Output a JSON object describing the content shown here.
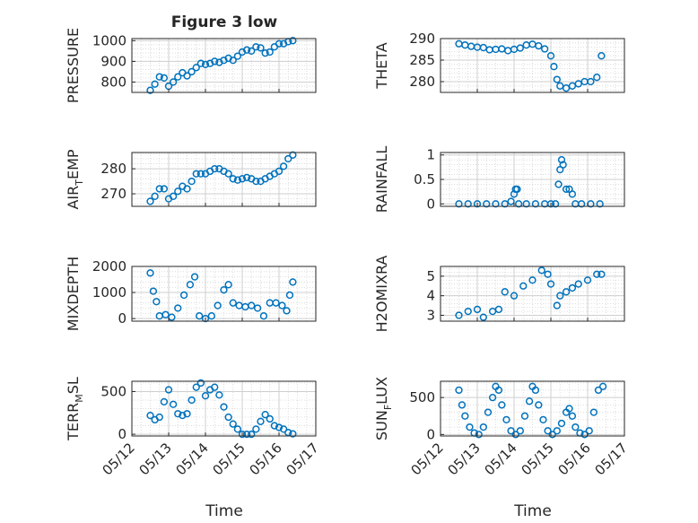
{
  "figure": {
    "title": "Figure 3 low",
    "marker_color": "#0072bd",
    "xlabel": "Time",
    "date_ticks": [
      "05/12",
      "05/13",
      "05/14",
      "05/15",
      "05/16",
      "05/17"
    ]
  },
  "chart_data": [
    {
      "type": "scatter",
      "title": "Figure 3 low",
      "ylabel_main": "PRESSURE",
      "ylabel_sub": "",
      "ylabel_tail": "",
      "xlim": [
        "2008-05-12",
        "2008-05-17"
      ],
      "ylim": [
        750,
        1010
      ],
      "yticks": [
        800,
        900,
        1000
      ],
      "grid": true,
      "x": [
        "2008-05-12 12:00",
        "2008-05-12 15:00",
        "2008-05-12 18:00",
        "2008-05-12 21:00",
        "2008-05-13 00:00",
        "2008-05-13 03:00",
        "2008-05-13 06:00",
        "2008-05-13 09:00",
        "2008-05-13 12:00",
        "2008-05-13 15:00",
        "2008-05-13 18:00",
        "2008-05-13 21:00",
        "2008-05-14 00:00",
        "2008-05-14 03:00",
        "2008-05-14 06:00",
        "2008-05-14 09:00",
        "2008-05-14 12:00",
        "2008-05-14 15:00",
        "2008-05-14 18:00",
        "2008-05-14 21:00",
        "2008-05-15 00:00",
        "2008-05-15 03:00",
        "2008-05-15 06:00",
        "2008-05-15 09:00",
        "2008-05-15 12:00",
        "2008-05-15 15:00",
        "2008-05-15 18:00",
        "2008-05-15 21:00",
        "2008-05-16 00:00",
        "2008-05-16 03:00",
        "2008-05-16 06:00",
        "2008-05-16 09:00"
      ],
      "y": [
        760,
        790,
        825,
        820,
        780,
        800,
        825,
        845,
        830,
        850,
        870,
        890,
        885,
        890,
        900,
        895,
        905,
        915,
        905,
        925,
        945,
        955,
        950,
        970,
        965,
        940,
        945,
        970,
        985,
        985,
        995,
        1000
      ]
    },
    {
      "type": "scatter",
      "ylabel_main": "THETA",
      "ylabel_sub": "",
      "ylabel_tail": "",
      "xlim": [
        "2008-05-12",
        "2008-05-17"
      ],
      "ylim": [
        277.5,
        290
      ],
      "yticks": [
        280,
        285,
        290
      ],
      "grid": true,
      "x": [
        "2008-05-12 12:00",
        "2008-05-12 16:00",
        "2008-05-12 20:00",
        "2008-05-13 00:00",
        "2008-05-13 04:00",
        "2008-05-13 08:00",
        "2008-05-13 12:00",
        "2008-05-13 16:00",
        "2008-05-13 20:00",
        "2008-05-14 00:00",
        "2008-05-14 04:00",
        "2008-05-14 08:00",
        "2008-05-14 12:00",
        "2008-05-14 16:00",
        "2008-05-14 20:00",
        "2008-05-15 00:00",
        "2008-05-15 02:00",
        "2008-05-15 04:00",
        "2008-05-15 06:00",
        "2008-05-15 10:00",
        "2008-05-15 14:00",
        "2008-05-15 18:00",
        "2008-05-15 22:00",
        "2008-05-16 02:00",
        "2008-05-16 06:00",
        "2008-05-16 09:00"
      ],
      "y": [
        288.8,
        288.5,
        288.2,
        288.0,
        287.9,
        287.4,
        287.5,
        287.6,
        287.2,
        287.5,
        287.8,
        288.5,
        288.7,
        288.3,
        287.6,
        286.0,
        283.5,
        280.5,
        279.0,
        278.5,
        279.0,
        279.5,
        280.0,
        280.0,
        281.0,
        286.0
      ]
    },
    {
      "type": "scatter",
      "ylabel_main": "AIR",
      "ylabel_sub": "T",
      "ylabel_tail": "EMP",
      "xlim": [
        "2008-05-12",
        "2008-05-17"
      ],
      "ylim": [
        265,
        286.5
      ],
      "yticks": [
        270,
        280
      ],
      "grid": true,
      "x": [
        "2008-05-12 12:00",
        "2008-05-12 15:00",
        "2008-05-12 18:00",
        "2008-05-12 21:00",
        "2008-05-13 00:00",
        "2008-05-13 03:00",
        "2008-05-13 06:00",
        "2008-05-13 09:00",
        "2008-05-13 12:00",
        "2008-05-13 15:00",
        "2008-05-13 18:00",
        "2008-05-13 21:00",
        "2008-05-14 00:00",
        "2008-05-14 03:00",
        "2008-05-14 06:00",
        "2008-05-14 09:00",
        "2008-05-14 12:00",
        "2008-05-14 15:00",
        "2008-05-14 18:00",
        "2008-05-14 21:00",
        "2008-05-15 00:00",
        "2008-05-15 03:00",
        "2008-05-15 06:00",
        "2008-05-15 09:00",
        "2008-05-15 12:00",
        "2008-05-15 15:00",
        "2008-05-15 18:00",
        "2008-05-15 21:00",
        "2008-05-16 00:00",
        "2008-05-16 03:00",
        "2008-05-16 06:00",
        "2008-05-16 09:00"
      ],
      "y": [
        267,
        269,
        272,
        272,
        268,
        269,
        271,
        273,
        272,
        275,
        278,
        278,
        278,
        279,
        280,
        280,
        279,
        278,
        276,
        275.5,
        276,
        276.5,
        276,
        275,
        275,
        276,
        277,
        278,
        279,
        281,
        284,
        285.5
      ]
    },
    {
      "type": "scatter",
      "ylabel_main": "RAINFALL",
      "ylabel_sub": "",
      "ylabel_tail": "",
      "xlim": [
        "2008-05-12",
        "2008-05-17"
      ],
      "ylim": [
        -0.05,
        1.05
      ],
      "yticks": [
        0,
        0.5,
        1
      ],
      "ytick_labels": [
        "0",
        "0.5",
        "1"
      ],
      "grid": true,
      "x": [
        "2008-05-12 12:00",
        "2008-05-12 18:00",
        "2008-05-13 00:00",
        "2008-05-13 06:00",
        "2008-05-13 12:00",
        "2008-05-13 18:00",
        "2008-05-13 22:00",
        "2008-05-14 00:00",
        "2008-05-14 01:00",
        "2008-05-14 02:00",
        "2008-05-14 03:00",
        "2008-05-14 08:00",
        "2008-05-14 14:00",
        "2008-05-14 20:00",
        "2008-05-15 00:00",
        "2008-05-15 03:00",
        "2008-05-15 05:00",
        "2008-05-15 06:00",
        "2008-05-15 07:00",
        "2008-05-15 08:00",
        "2008-05-15 10:00",
        "2008-05-15 12:00",
        "2008-05-15 14:00",
        "2008-05-15 16:00",
        "2008-05-15 20:00",
        "2008-05-16 02:00",
        "2008-05-16 08:00"
      ],
      "y": [
        0,
        0,
        0,
        0,
        0,
        0,
        0.05,
        0.2,
        0.3,
        0.3,
        0,
        0,
        0,
        0,
        0,
        0,
        0.4,
        0.7,
        0.9,
        0.8,
        0.3,
        0.3,
        0.2,
        0,
        0,
        0,
        0
      ]
    },
    {
      "type": "scatter",
      "ylabel_main": "MIXDEPTH",
      "ylabel_sub": "",
      "ylabel_tail": "",
      "xlim": [
        "2008-05-12",
        "2008-05-17"
      ],
      "ylim": [
        -100,
        2000
      ],
      "yticks": [
        0,
        1000,
        2000
      ],
      "grid": true,
      "x": [
        "2008-05-12 12:00",
        "2008-05-12 14:00",
        "2008-05-12 16:00",
        "2008-05-12 18:00",
        "2008-05-12 22:00",
        "2008-05-13 02:00",
        "2008-05-13 06:00",
        "2008-05-13 10:00",
        "2008-05-13 14:00",
        "2008-05-13 17:00",
        "2008-05-13 20:00",
        "2008-05-14 00:00",
        "2008-05-14 04:00",
        "2008-05-14 08:00",
        "2008-05-14 12:00",
        "2008-05-14 15:00",
        "2008-05-14 18:00",
        "2008-05-14 22:00",
        "2008-05-15 02:00",
        "2008-05-15 06:00",
        "2008-05-15 10:00",
        "2008-05-15 14:00",
        "2008-05-15 18:00",
        "2008-05-15 22:00",
        "2008-05-16 02:00",
        "2008-05-16 05:00",
        "2008-05-16 07:00",
        "2008-05-16 09:00"
      ],
      "y": [
        1750,
        1050,
        650,
        100,
        150,
        50,
        400,
        900,
        1300,
        1600,
        100,
        0,
        100,
        500,
        1100,
        1300,
        600,
        500,
        450,
        500,
        400,
        100,
        600,
        600,
        500,
        300,
        900,
        1400
      ]
    },
    {
      "type": "scatter",
      "ylabel_main": "H2OMIXRA",
      "ylabel_sub": "",
      "ylabel_tail": "",
      "xlim": [
        "2008-05-12",
        "2008-05-17"
      ],
      "ylim": [
        2.7,
        5.5
      ],
      "yticks": [
        3,
        4,
        5
      ],
      "grid": true,
      "x": [
        "2008-05-12 12:00",
        "2008-05-12 18:00",
        "2008-05-13 00:00",
        "2008-05-13 04:00",
        "2008-05-13 10:00",
        "2008-05-13 14:00",
        "2008-05-13 18:00",
        "2008-05-14 00:00",
        "2008-05-14 06:00",
        "2008-05-14 12:00",
        "2008-05-14 18:00",
        "2008-05-14 22:00",
        "2008-05-15 00:00",
        "2008-05-15 04:00",
        "2008-05-15 06:00",
        "2008-05-15 10:00",
        "2008-05-15 14:00",
        "2008-05-15 18:00",
        "2008-05-16 00:00",
        "2008-05-16 06:00",
        "2008-05-16 09:00"
      ],
      "y": [
        3.0,
        3.2,
        3.3,
        2.9,
        3.2,
        3.3,
        4.2,
        4.0,
        4.5,
        4.8,
        5.3,
        5.1,
        4.6,
        3.5,
        4.0,
        4.2,
        4.4,
        4.6,
        4.8,
        5.1,
        5.1
      ]
    },
    {
      "type": "scatter",
      "ylabel_main": "TERR",
      "ylabel_sub": "M",
      "ylabel_tail": "SL",
      "xlim": [
        "2008-05-12",
        "2008-05-17"
      ],
      "ylim": [
        -20,
        620
      ],
      "yticks": [
        0,
        500
      ],
      "grid": true,
      "x": [
        "2008-05-12 12:00",
        "2008-05-12 15:00",
        "2008-05-12 18:00",
        "2008-05-12 21:00",
        "2008-05-13 00:00",
        "2008-05-13 03:00",
        "2008-05-13 06:00",
        "2008-05-13 09:00",
        "2008-05-13 12:00",
        "2008-05-13 15:00",
        "2008-05-13 18:00",
        "2008-05-13 21:00",
        "2008-05-14 00:00",
        "2008-05-14 03:00",
        "2008-05-14 06:00",
        "2008-05-14 09:00",
        "2008-05-14 12:00",
        "2008-05-14 15:00",
        "2008-05-14 18:00",
        "2008-05-14 21:00",
        "2008-05-15 00:00",
        "2008-05-15 03:00",
        "2008-05-15 06:00",
        "2008-05-15 09:00",
        "2008-05-15 12:00",
        "2008-05-15 15:00",
        "2008-05-15 18:00",
        "2008-05-15 21:00",
        "2008-05-16 00:00",
        "2008-05-16 03:00",
        "2008-05-16 06:00",
        "2008-05-16 09:00"
      ],
      "y": [
        220,
        170,
        200,
        380,
        520,
        350,
        240,
        220,
        240,
        400,
        550,
        600,
        450,
        520,
        550,
        460,
        320,
        200,
        120,
        60,
        0,
        0,
        0,
        60,
        150,
        230,
        180,
        100,
        80,
        60,
        20,
        5
      ]
    },
    {
      "type": "scatter",
      "ylabel_main": "SUN",
      "ylabel_sub": "F",
      "ylabel_tail": "LUX",
      "xlim": [
        "2008-05-12",
        "2008-05-17"
      ],
      "ylim": [
        -20,
        720
      ],
      "yticks": [
        0,
        500
      ],
      "grid": true,
      "x": [
        "2008-05-12 12:00",
        "2008-05-12 14:00",
        "2008-05-12 16:00",
        "2008-05-12 19:00",
        "2008-05-12 22:00",
        "2008-05-13 01:00",
        "2008-05-13 04:00",
        "2008-05-13 07:00",
        "2008-05-13 10:00",
        "2008-05-13 12:00",
        "2008-05-13 14:00",
        "2008-05-13 16:00",
        "2008-05-13 19:00",
        "2008-05-13 22:00",
        "2008-05-14 01:00",
        "2008-05-14 04:00",
        "2008-05-14 07:00",
        "2008-05-14 10:00",
        "2008-05-14 12:00",
        "2008-05-14 14:00",
        "2008-05-14 16:00",
        "2008-05-14 19:00",
        "2008-05-14 22:00",
        "2008-05-15 01:00",
        "2008-05-15 04:00",
        "2008-05-15 07:00",
        "2008-05-15 10:00",
        "2008-05-15 12:00",
        "2008-05-15 14:00",
        "2008-05-15 16:00",
        "2008-05-15 19:00",
        "2008-05-15 22:00",
        "2008-05-16 01:00",
        "2008-05-16 04:00",
        "2008-05-16 07:00",
        "2008-05-16 10:00"
      ],
      "y": [
        600,
        400,
        250,
        100,
        20,
        0,
        100,
        300,
        500,
        650,
        600,
        400,
        200,
        50,
        0,
        50,
        250,
        450,
        650,
        600,
        400,
        200,
        50,
        0,
        50,
        150,
        300,
        350,
        250,
        100,
        20,
        0,
        50,
        300,
        600,
        650
      ]
    }
  ]
}
